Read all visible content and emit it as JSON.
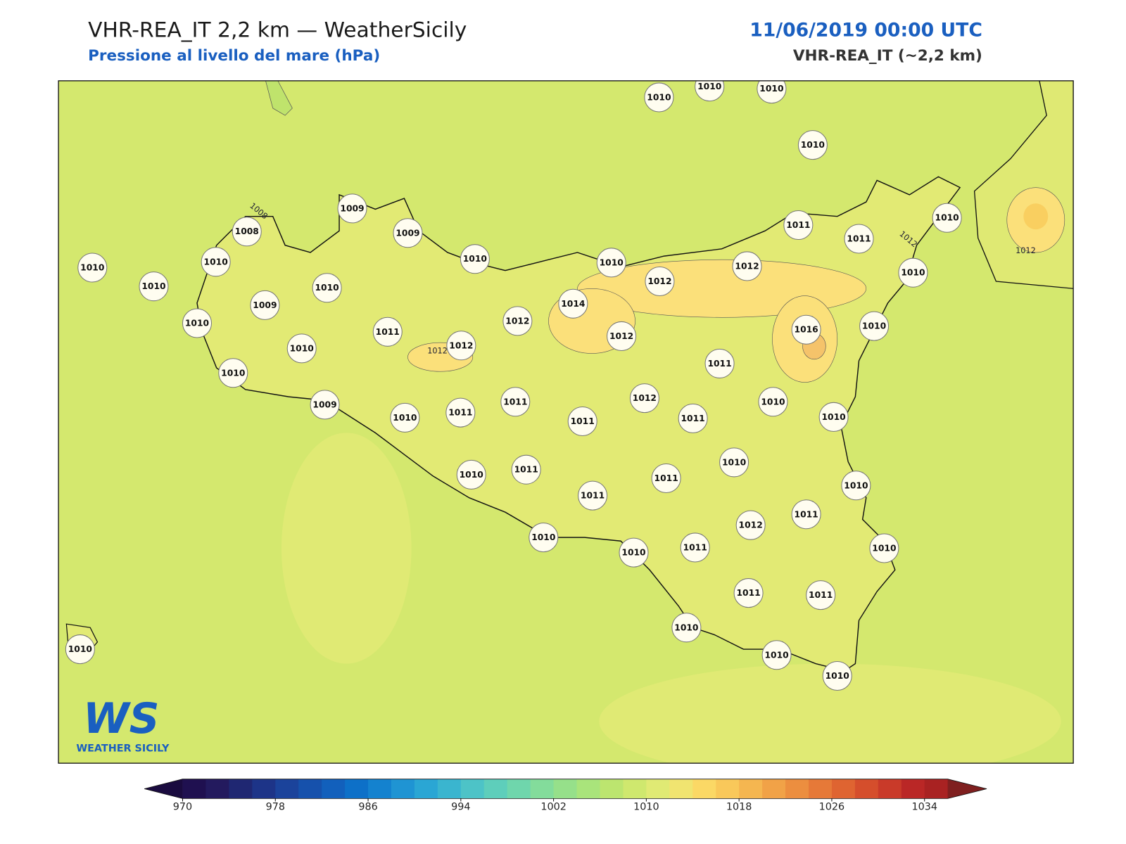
{
  "header": {
    "title": "VHR-REA_IT 2,2 km — WeatherSicily",
    "subtitle": "Pressione al livello del mare (hPa)",
    "datetime": "11/06/2019 00:00 UTC",
    "model": "VHR-REA_IT (~2,2 km)"
  },
  "stations": [
    1010,
    1010,
    1010,
    1010,
    1009,
    1008,
    1009,
    1010,
    1010,
    1010,
    1010,
    1009,
    1010,
    1010,
    1010,
    1009,
    1011,
    1012,
    1010,
    1012,
    1014,
    1010,
    1012,
    1012,
    1012,
    1011,
    1011,
    1010,
    1010,
    1010,
    1016,
    1011,
    1012,
    1010,
    1010,
    1011,
    1011,
    1011,
    1011,
    1010,
    1010,
    1011,
    1011,
    1011,
    1010,
    1010,
    1011,
    1012,
    1010,
    1011,
    1010,
    1010,
    1011,
    1011,
    1010,
    1010,
    1010,
    1010
  ],
  "contour_labels": [
    "1008",
    "1012",
    "1012",
    "1012"
  ],
  "logo": {
    "mark": "WS",
    "text": "WEATHER SICILY"
  },
  "colorbar": {
    "lim": [
      970,
      1036
    ],
    "ticks": [
      970,
      978,
      986,
      994,
      1002,
      1010,
      1018,
      1026,
      1034
    ],
    "colors": [
      "#1f1050",
      "#231a5e",
      "#1f2772",
      "#1d3488",
      "#1b439b",
      "#1651ac",
      "#1260bc",
      "#0d70c8",
      "#1482cf",
      "#1f94d3",
      "#2aa6d4",
      "#3ab5cf",
      "#4dc3c7",
      "#5ecebb",
      "#6fd6ac",
      "#83dc9b",
      "#96e08a",
      "#a9e47b",
      "#bce56f",
      "#cfe86e",
      "#e0ea74",
      "#f0e470",
      "#fbd865",
      "#f9c85a",
      "#f5b650",
      "#f1a247",
      "#ec8e3f",
      "#e67938",
      "#df6431",
      "#d54e2c",
      "#c93a29",
      "#ba2726",
      "#a92222"
    ],
    "under_color": "#1a0b3f",
    "over_color": "#7f1f1f"
  }
}
